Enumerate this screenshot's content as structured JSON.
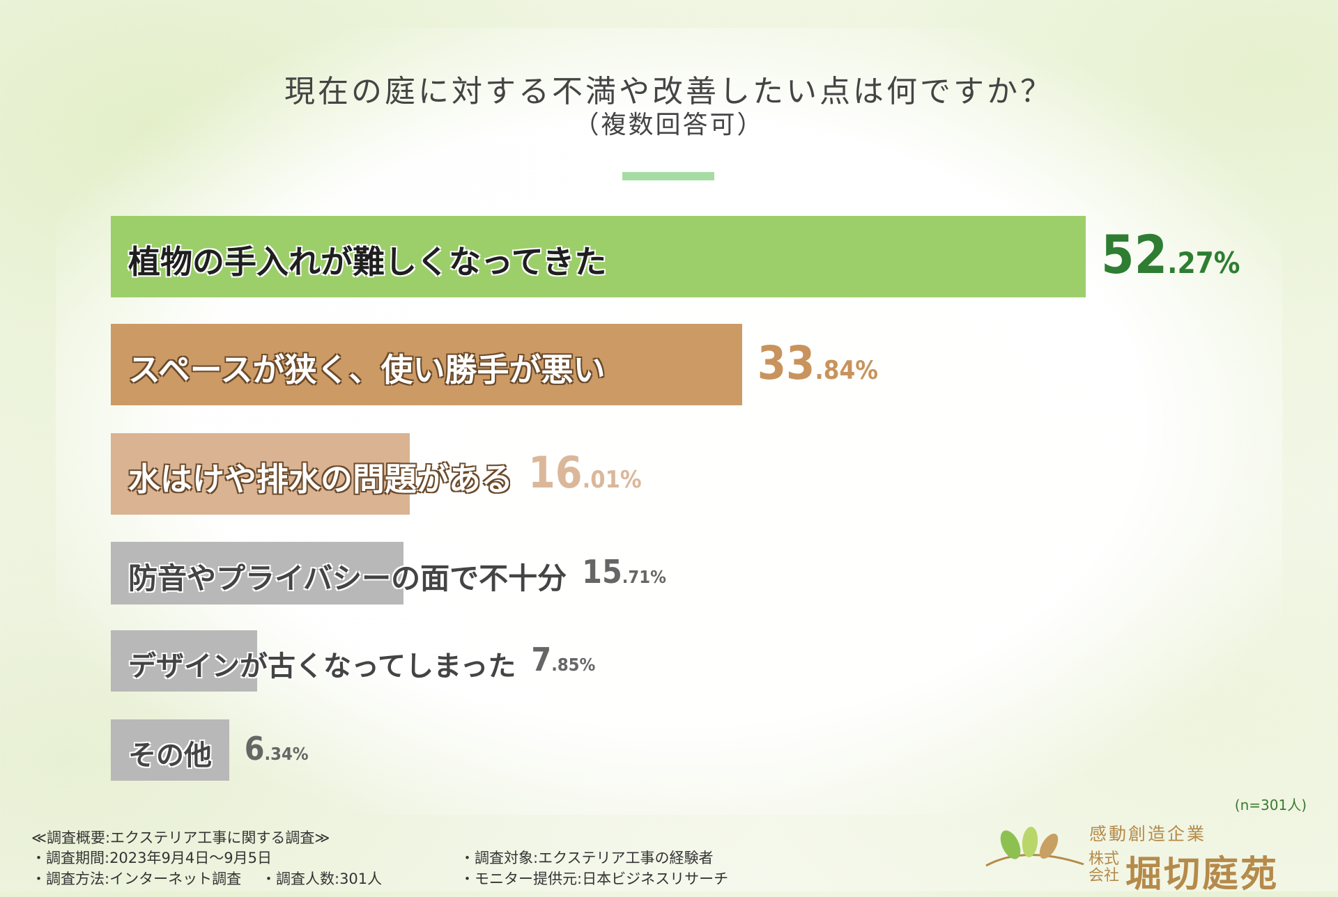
{
  "title": "現在の庭に対する不満や改善したい点は何ですか？",
  "subtitle": "（複数回答可）",
  "chart_data": {
    "type": "bar",
    "orientation": "horizontal",
    "title": "現在の庭に対する不満や改善したい点は何ですか？",
    "subtitle": "（複数回答可）",
    "categories": [
      "植物の手入れが難しくなってきた",
      "スペースが狭く、使い勝手が悪い",
      "水はけや排水の問題がある",
      "防音やプライバシーの面で不十分",
      "デザインが古くなってしまった",
      "その他"
    ],
    "values": [
      52.27,
      33.84,
      16.01,
      15.71,
      7.85,
      6.34
    ],
    "value_labels": [
      {
        "int": "52",
        "dec": ".27%"
      },
      {
        "int": "33",
        "dec": ".84%"
      },
      {
        "int": "16",
        "dec": ".01%"
      },
      {
        "int": "15",
        "dec": ".71%"
      },
      {
        "int": "7",
        "dec": ".85%"
      },
      {
        "int": "6",
        "dec": ".34%"
      }
    ],
    "unit": "%",
    "colors": [
      "#9ccf6a",
      "#cc9a65",
      "#d9b392",
      "#b8b8b8",
      "#b8b8b8",
      "#b8b8b8"
    ],
    "value_colors": [
      "#2e7d32",
      "#c8935c",
      "#dbb79a",
      "#666666",
      "#666666",
      "#666666"
    ]
  },
  "n_label": "(n=301人)",
  "footer": {
    "heading": "≪調査概要:エクステリア工事に関する調査≫",
    "period": "・調査期間:2023年9月4日〜9月5日",
    "method": "・調査方法:インターネット調査",
    "count": "・調査人数:301人",
    "target": "・調査対象:エクステリア工事の経験者",
    "provider": "・モニター提供元:日本ビジネスリサーチ"
  },
  "logo": {
    "tagline": "感動創造企業",
    "kabu_line1": "株式",
    "kabu_line2": "会社",
    "name": "堀切庭苑"
  }
}
